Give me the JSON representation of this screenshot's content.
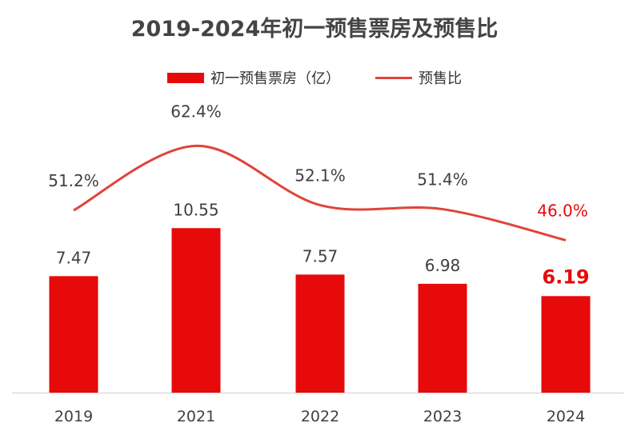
{
  "chart_data": {
    "type": "bar+line",
    "title": "2019-2024年初一预售票房及预售比",
    "categories": [
      "2019",
      "2021",
      "2022",
      "2023",
      "2024"
    ],
    "series": [
      {
        "name": "初一预售票房（亿）",
        "type": "bar",
        "values": [
          7.47,
          10.55,
          7.57,
          6.98,
          6.19
        ],
        "labels": [
          "7.47",
          "10.55",
          "7.57",
          "6.98",
          "6.19"
        ]
      },
      {
        "name": "预售比",
        "type": "line",
        "values": [
          51.2,
          62.4,
          52.1,
          51.4,
          46.0
        ],
        "labels": [
          "51.2%",
          "62.4%",
          "52.1%",
          "51.4%",
          "46.0%"
        ]
      }
    ],
    "legend_position": "top",
    "highlight_category": "2024",
    "colors": {
      "bar": "#e60a0a",
      "line": "#e0443a",
      "highlight_text": "#e60a0a",
      "text": "#404040"
    }
  }
}
